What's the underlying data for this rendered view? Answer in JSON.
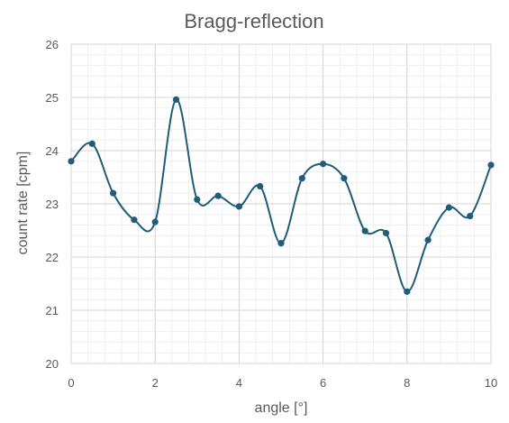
{
  "chart_data": {
    "type": "line",
    "title": "Bragg-reflection",
    "xlabel": "angle [°]",
    "ylabel": "count rate [cpm]",
    "xlim": [
      0,
      10
    ],
    "ylim": [
      20,
      26
    ],
    "x_ticks": [
      "0",
      "2",
      "4",
      "6",
      "8",
      "10"
    ],
    "y_ticks": [
      "20",
      "21",
      "22",
      "23",
      "24",
      "25",
      "26"
    ],
    "grid": true,
    "smoothed": true,
    "color": "#1f5c7a",
    "series": [
      {
        "x": [
          0,
          0.5,
          1,
          1.5,
          2,
          2.5,
          3,
          3.5,
          4,
          4.5,
          5,
          5.5,
          6,
          6.5,
          7,
          7.5,
          8,
          8.5,
          9,
          9.5,
          10
        ],
        "values": [
          23.8,
          24.13,
          23.2,
          22.7,
          22.66,
          24.96,
          23.08,
          23.15,
          22.95,
          23.33,
          22.26,
          23.48,
          23.75,
          23.48,
          22.49,
          22.45,
          21.35,
          22.32,
          22.93,
          22.77,
          23.73
        ]
      }
    ]
  }
}
